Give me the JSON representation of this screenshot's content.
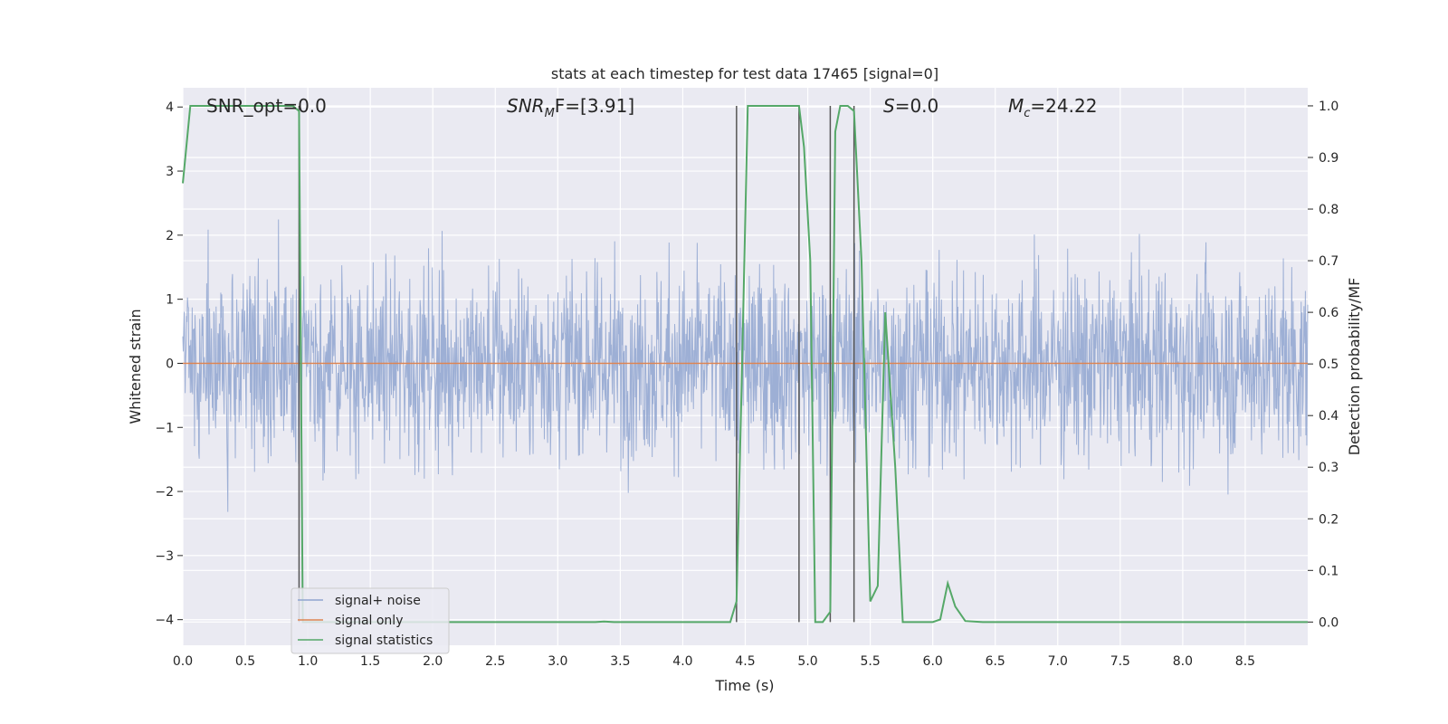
{
  "chart_data": {
    "type": "line",
    "title": "stats at each timestep for test data 17465 [signal=0]",
    "xlabel": "Time (s)",
    "ylabel_left": "Whitened strain",
    "ylabel_right": "Detection probability/MF",
    "xlim": [
      0.0,
      9.0
    ],
    "ylim_left": [
      -4.4,
      4.3
    ],
    "ylim_right": [
      -0.045,
      1.035
    ],
    "x_ticks": [
      "0.0",
      "0.5",
      "1.0",
      "1.5",
      "2.0",
      "2.5",
      "3.0",
      "3.5",
      "4.0",
      "4.5",
      "5.0",
      "5.5",
      "6.0",
      "6.5",
      "7.0",
      "7.5",
      "8.0",
      "8.5"
    ],
    "y_left_ticks": [
      "4",
      "3",
      "2",
      "1",
      "0",
      "−1",
      "−2",
      "−3",
      "−4"
    ],
    "y_left_tick_values": [
      4,
      3,
      2,
      1,
      0,
      -1,
      -2,
      -3,
      -4
    ],
    "y_right_ticks": [
      "1.0",
      "0.9",
      "0.8",
      "0.7",
      "0.6",
      "0.5",
      "0.4",
      "0.3",
      "0.2",
      "0.1",
      "0.0"
    ],
    "y_right_tick_values": [
      1.0,
      0.9,
      0.8,
      0.7,
      0.6,
      0.5,
      0.4,
      0.3,
      0.2,
      0.1,
      0.0
    ],
    "grid": true,
    "legend_placement": "lower-left",
    "annotations": {
      "snr_opt": "SNR_opt=0.0",
      "snr_mf_main": "SNR",
      "snr_mf_sub": "M",
      "snr_mf_rest": "F=[3.91]",
      "s_main": "S",
      "s_rest": "=0.0",
      "mc_main": "M",
      "mc_sub": "c",
      "mc_rest": "=24.22"
    },
    "series": [
      {
        "name": "signal+ noise",
        "color": "#8fa5d0",
        "axis": "left",
        "description_range": [
          -4.0,
          4.0
        ],
        "duration_s": 9.0
      },
      {
        "name": "signal only",
        "color": "#dd8452",
        "axis": "left",
        "x": [
          0.0,
          9.0
        ],
        "y": [
          0.0,
          0.0
        ]
      },
      {
        "name": "signal statistics",
        "color": "#55a868",
        "axis": "right",
        "x": [
          0.0,
          0.06,
          0.12,
          0.2,
          0.3,
          0.4,
          0.5,
          0.6,
          0.7,
          0.8,
          0.88,
          0.93,
          0.96,
          1.0,
          1.1,
          1.5,
          2.0,
          2.5,
          3.0,
          3.3,
          3.37,
          3.45,
          3.6,
          4.0,
          4.3,
          4.38,
          4.43,
          4.47,
          4.52,
          4.6,
          4.8,
          4.93,
          4.97,
          5.02,
          5.06,
          5.12,
          5.18,
          5.22,
          5.26,
          5.32,
          5.37,
          5.43,
          5.5,
          5.56,
          5.62,
          5.7,
          5.76,
          5.85,
          6.0,
          6.06,
          6.12,
          6.18,
          6.26,
          6.4,
          6.6,
          7.0,
          8.0,
          8.8,
          9.0
        ],
        "y": [
          0.85,
          1.0,
          1.0,
          1.0,
          1.0,
          1.0,
          1.0,
          1.0,
          1.0,
          1.0,
          1.0,
          0.99,
          0.0,
          0.0,
          0.0,
          0.0,
          0.0,
          0.0,
          0.0,
          0.0,
          0.001,
          0.0,
          0.0,
          0.0,
          0.0,
          0.0,
          0.04,
          0.45,
          1.0,
          1.0,
          1.0,
          1.0,
          0.92,
          0.7,
          0.0,
          0.0,
          0.02,
          0.95,
          1.0,
          1.0,
          0.99,
          0.7,
          0.04,
          0.07,
          0.6,
          0.3,
          0.0,
          0.0,
          0.0,
          0.005,
          0.075,
          0.03,
          0.002,
          0.0,
          0.0,
          0.0,
          0.0,
          0.0,
          0.0
        ]
      }
    ],
    "vertical_lines_x": [
      0.93,
      4.43,
      4.93,
      5.18,
      5.37
    ]
  }
}
